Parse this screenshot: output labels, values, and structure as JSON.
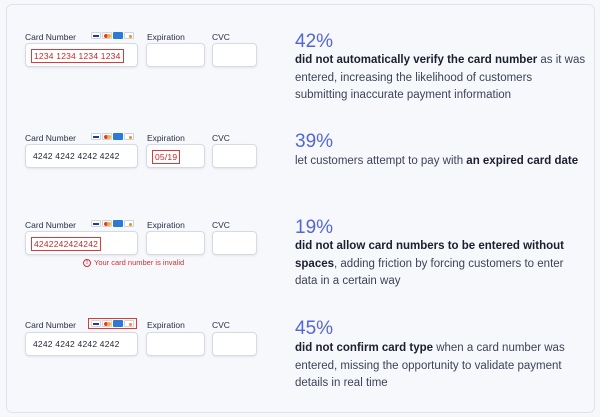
{
  "labels": {
    "card_number": "Card Number",
    "expiration": "Expiration",
    "cvc": "CVC"
  },
  "rows": [
    {
      "card_value": "1234 1234 1234 1234",
      "card_value_error": true,
      "exp_value": "",
      "percent": "42%",
      "desc_bold": "did not automatically verify the card number",
      "desc_rest": " as it was entered, increasing the likelihood of customers submitting inaccurate payment information"
    },
    {
      "card_value": "4242 4242 4242 4242",
      "exp_value": "05/19",
      "percent": "39%",
      "desc_pre": "let customers attempt to pay with ",
      "desc_bold": "an expired card date"
    },
    {
      "card_value": "4242242424242",
      "exp_value": "",
      "error_message": "Your card number is invalid",
      "percent": "19%",
      "desc_bold": "did not allow card numbers to be entered without spaces",
      "desc_rest": ", adding friction by forcing customers to enter data in a certain way"
    },
    {
      "card_value": "4242 4242 4242 4242",
      "exp_value": "",
      "percent": "45%",
      "desc_bold": "did not confirm card type",
      "desc_rest": " when a card number was entered, missing the opportunity to validate payment details in real time"
    }
  ],
  "colors": {
    "accent": "#5566d4",
    "error": "#d93a3a"
  },
  "icons": {
    "card_brands": [
      "visa-icon",
      "mastercard-icon",
      "amex-icon",
      "discover-icon"
    ],
    "error": "error-circle-icon"
  }
}
